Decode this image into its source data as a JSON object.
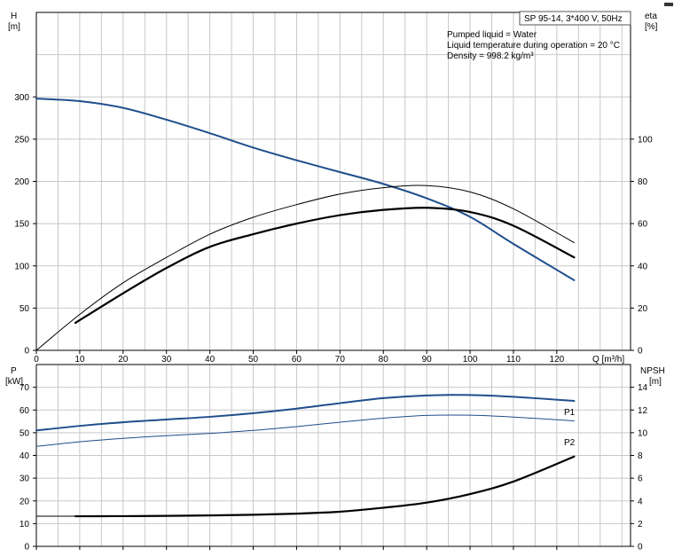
{
  "info_box": {
    "pump_label": "SP 95-14, 3*400 V, 50Hz",
    "lines": [
      "Pumped liquid = Water",
      "Liquid temperature during operation = 20 °C",
      "Density = 998.2 kg/m³"
    ]
  },
  "colors": {
    "blue": "#1f4e8c",
    "black": "#000000",
    "grid": "#c8c8c8"
  },
  "chart_data": [
    {
      "type": "line",
      "panel": "head-efficiency",
      "xlabel": "Q [m³/h]",
      "x_ticks": [
        0,
        10,
        20,
        30,
        40,
        50,
        60,
        70,
        80,
        90,
        100,
        110,
        120
      ],
      "xlim": [
        0,
        137
      ],
      "ylabel_left": "H",
      "ylabel_left_unit": "[m]",
      "ylim_left": [
        0,
        400
      ],
      "yticks_left": [
        0,
        50,
        100,
        150,
        200,
        250,
        300
      ],
      "ylabel_right": "eta",
      "ylabel_right_unit": "[%]",
      "ylim_right": [
        0,
        160
      ],
      "yticks_right": [
        0,
        20,
        40,
        60,
        80,
        100
      ],
      "grid": true,
      "series": [
        {
          "axis": "left",
          "color": "#1f4e8c",
          "width": 2,
          "x": [
            0,
            10,
            20,
            30,
            40,
            50,
            60,
            70,
            80,
            90,
            100,
            110,
            124
          ],
          "y": [
            298,
            295,
            287,
            273,
            257,
            240,
            225,
            211,
            197,
            180,
            158,
            126,
            83
          ]
        },
        {
          "axis": "right",
          "color": "#000000",
          "width": 1,
          "x": [
            0,
            10,
            20,
            30,
            40,
            50,
            60,
            70,
            80,
            90,
            100,
            110,
            124
          ],
          "y": [
            0,
            17,
            32,
            44,
            55,
            63,
            69,
            74,
            77,
            78,
            75,
            67,
            51
          ]
        },
        {
          "axis": "right",
          "color": "#000000",
          "width": 2.2,
          "x": [
            9,
            20,
            30,
            40,
            50,
            60,
            70,
            80,
            90,
            100,
            110,
            124
          ],
          "y": [
            13,
            27,
            39,
            49,
            55,
            60,
            64,
            66.5,
            67.5,
            65.5,
            59,
            44
          ]
        }
      ]
    },
    {
      "type": "line",
      "panel": "power-npsh",
      "xlim": [
        0,
        137
      ],
      "ylabel_left": "P",
      "ylabel_left_unit": "[kW]",
      "ylim_left": [
        0,
        80
      ],
      "yticks_left": [
        0,
        10,
        20,
        30,
        40,
        50,
        60,
        70
      ],
      "ylabel_right": "NPSH",
      "ylabel_right_unit": "[m]",
      "ylim_right": [
        0,
        16
      ],
      "yticks_right": [
        0,
        2,
        4,
        6,
        8,
        10,
        12,
        14
      ],
      "grid": true,
      "series": [
        {
          "name": "P1",
          "axis": "left",
          "color": "#1f4e8c",
          "width": 2,
          "x": [
            0,
            10,
            20,
            30,
            40,
            50,
            60,
            70,
            80,
            90,
            100,
            110,
            124
          ],
          "y": [
            51,
            53,
            54.6,
            55.8,
            57,
            58.6,
            60.6,
            63,
            65.2,
            66.4,
            66.6,
            65.8,
            64
          ]
        },
        {
          "name": "P2",
          "axis": "left",
          "color": "#1f4e8c",
          "width": 1,
          "x": [
            0,
            10,
            20,
            30,
            40,
            50,
            60,
            70,
            80,
            90,
            100,
            110,
            124
          ],
          "y": [
            44,
            46,
            47.5,
            48.7,
            49.7,
            51,
            52.7,
            54.6,
            56.4,
            57.6,
            57.7,
            56.9,
            55.2
          ]
        },
        {
          "axis": "right",
          "color": "#000000",
          "width": 1,
          "x": [
            0,
            9
          ],
          "y": [
            2.65,
            2.65
          ]
        },
        {
          "axis": "right",
          "color": "#000000",
          "width": 2.2,
          "x": [
            9,
            20,
            30,
            40,
            50,
            60,
            70,
            80,
            90,
            100,
            110,
            124
          ],
          "y": [
            2.65,
            2.66,
            2.68,
            2.72,
            2.78,
            2.88,
            3.05,
            3.4,
            3.85,
            4.6,
            5.7,
            7.9
          ]
        }
      ]
    }
  ]
}
